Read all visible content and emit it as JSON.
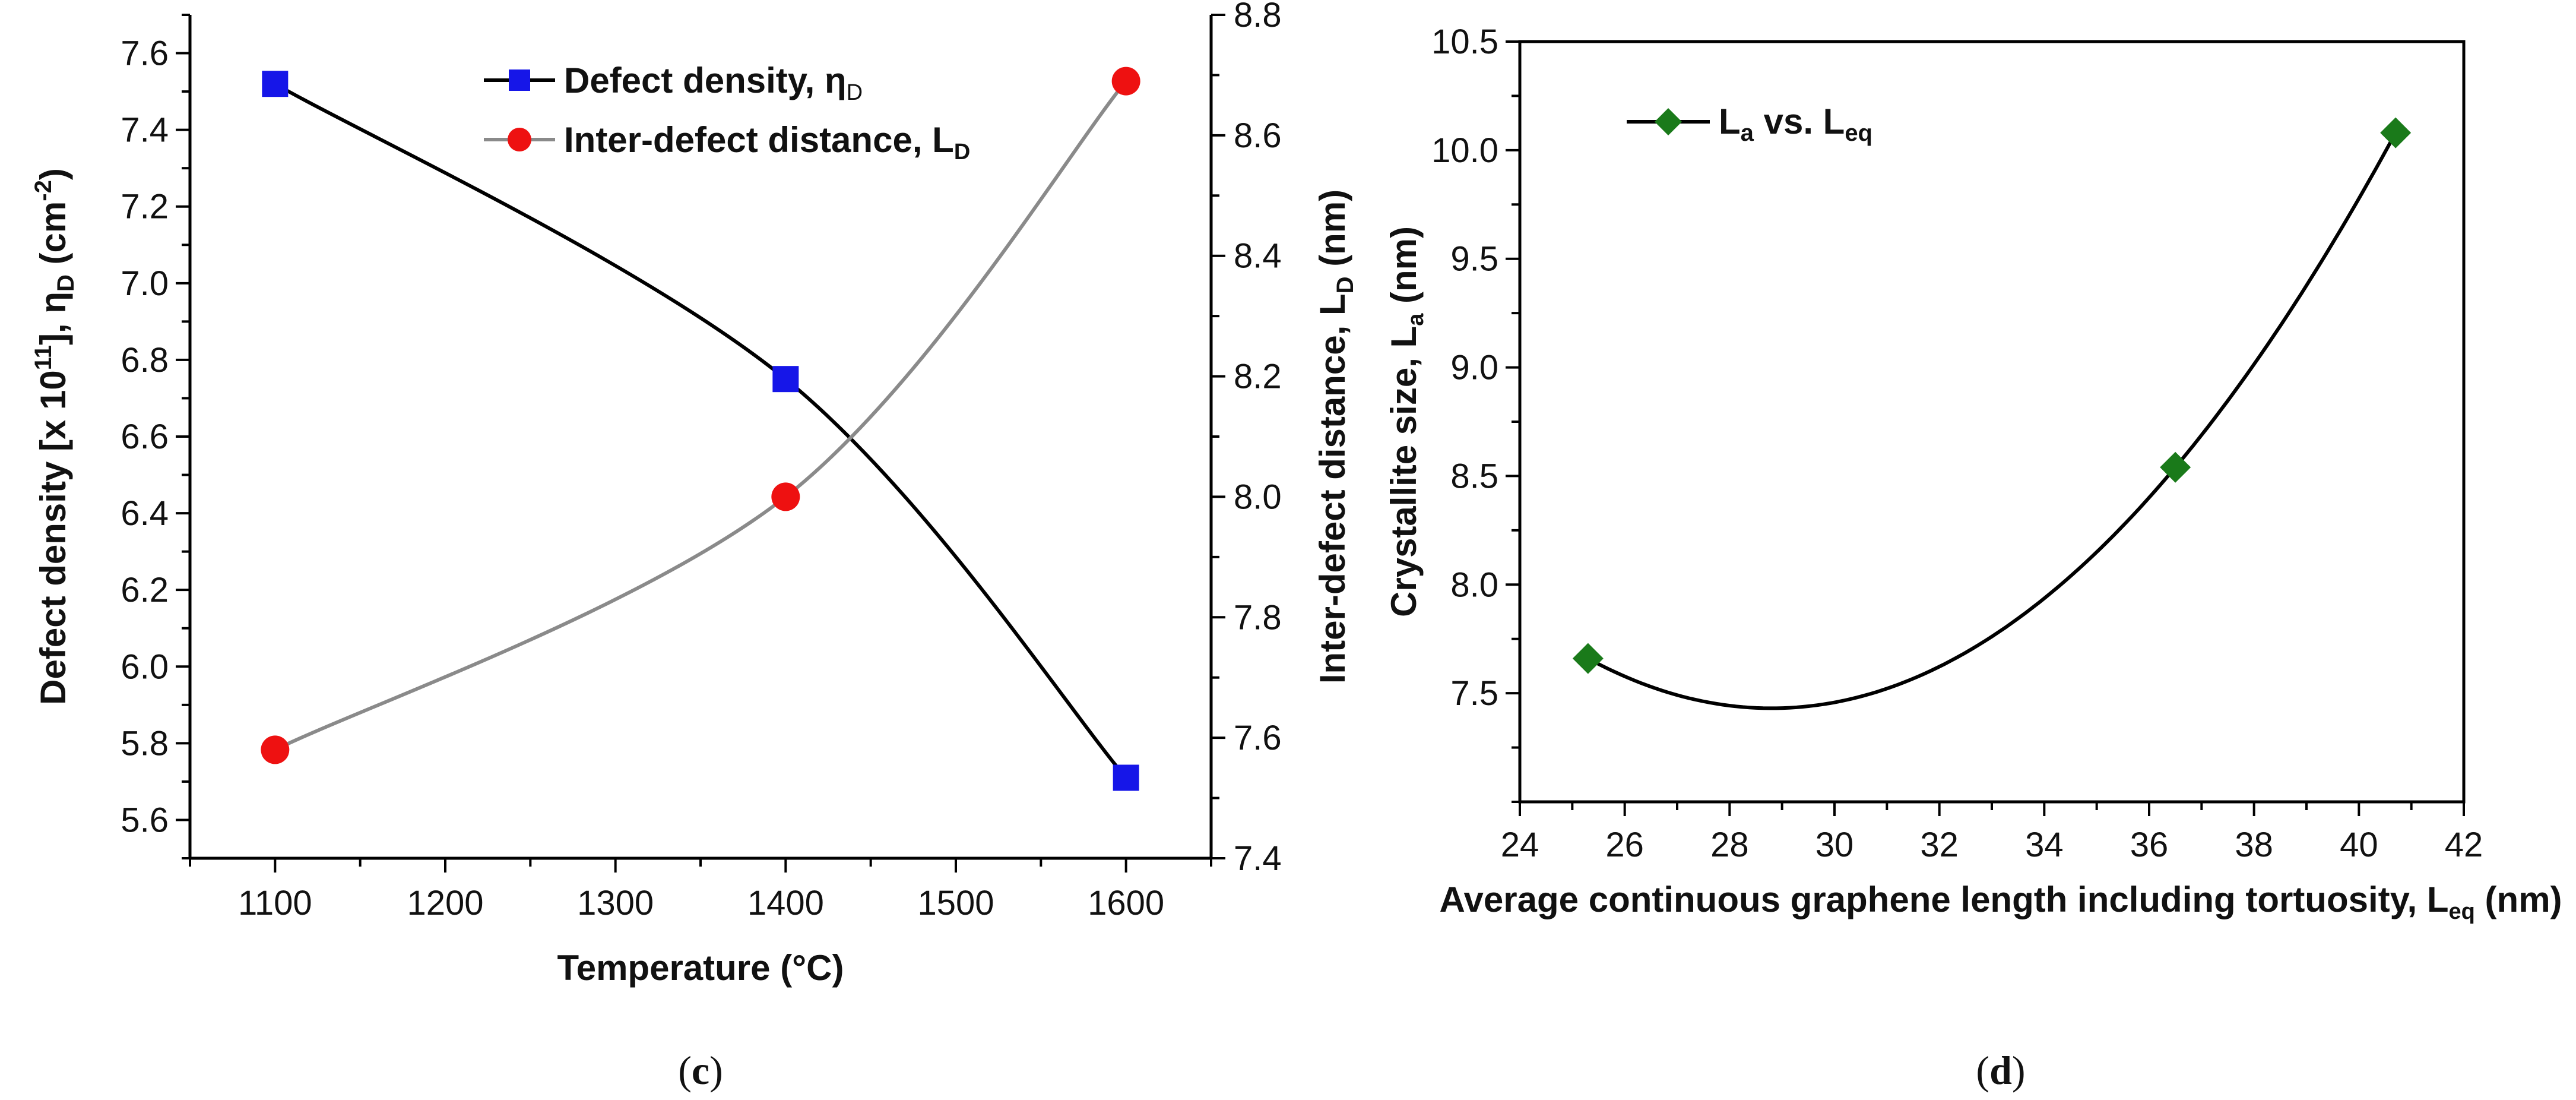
{
  "chart_data": [
    {
      "type": "line",
      "caption_open": "(",
      "caption_letter": "c",
      "caption_close": ")",
      "xlabel": "Temperature (°C)",
      "xlim": [
        1050,
        1650
      ],
      "xticks": [
        "1100",
        "1200",
        "1300",
        "1400",
        "1500",
        "1600"
      ],
      "y_left": {
        "label_main": "Defect density [x 10",
        "label_sup1": "11",
        "label_mid": "],  η",
        "label_sub": "D",
        "label_unit": " (cm",
        "label_sup2": "-2",
        "label_end": ")",
        "lim": [
          5.5,
          7.7
        ],
        "ticks": [
          "5.6",
          "5.8",
          "6.0",
          "6.2",
          "6.4",
          "6.6",
          "6.8",
          "7.0",
          "7.2",
          "7.4",
          "7.6"
        ]
      },
      "y_right": {
        "label_main": "Inter-defect distance, L",
        "label_sub": "D",
        "label_end": " (nm)",
        "lim": [
          7.4,
          8.8
        ],
        "ticks": [
          "7.4",
          "7.6",
          "7.8",
          "8.0",
          "8.2",
          "8.4",
          "8.6",
          "8.8"
        ]
      },
      "series": [
        {
          "name_main": "Defect density, η",
          "name_sub": "D",
          "axis": "left",
          "marker": "square",
          "marker_color": "#1616e8",
          "line_color": "#000000",
          "x": [
            1100,
            1400,
            1600
          ],
          "values": [
            7.52,
            6.75,
            5.71
          ]
        },
        {
          "name_main": "Inter-defect distance, L",
          "name_sub": "D",
          "axis": "right",
          "marker": "circle",
          "marker_color": "#ee1111",
          "line_color": "#8a8a8a",
          "x": [
            1100,
            1400,
            1600
          ],
          "values": [
            7.58,
            8.0,
            8.69
          ]
        }
      ]
    },
    {
      "type": "line",
      "caption_open": "(",
      "caption_letter": "d",
      "caption_close": ")",
      "xlabel_main": "Average continuous graphene length including tortuosity, L",
      "xlabel_sub": "eq",
      "xlabel_end": " (nm)",
      "xlim": [
        24,
        42
      ],
      "xticks": [
        "24",
        "26",
        "28",
        "30",
        "32",
        "34",
        "36",
        "38",
        "40",
        "42"
      ],
      "ylabel_main": "Crystallite size, L",
      "ylabel_sub": "a",
      "ylabel_end": " (nm)",
      "ylim": [
        7.0,
        10.5
      ],
      "yticks": [
        "7.5",
        "8.0",
        "8.5",
        "9.0",
        "9.5",
        "10.0",
        "10.5"
      ],
      "series": [
        {
          "name_a": "L",
          "name_a_sub": "a",
          "name_mid": " vs. L",
          "name_b_sub": "eq",
          "marker": "diamond",
          "marker_color": "#1a7a1a",
          "line_color": "#000000",
          "x": [
            25.3,
            36.5,
            40.7
          ],
          "values": [
            7.66,
            8.54,
            10.08
          ]
        }
      ]
    }
  ]
}
